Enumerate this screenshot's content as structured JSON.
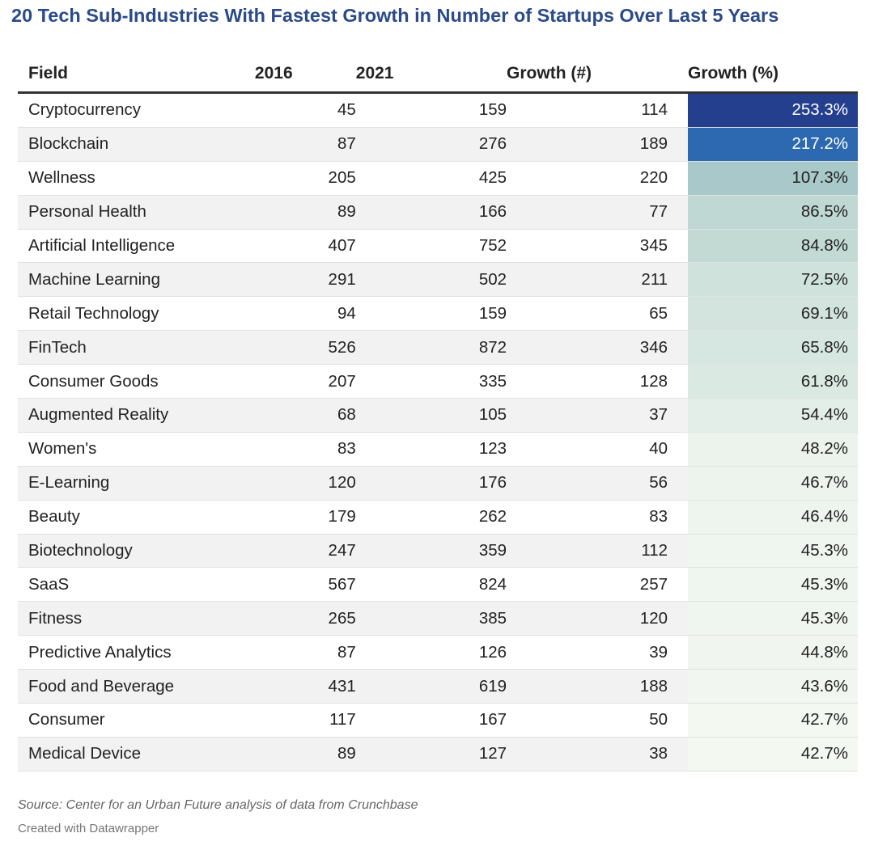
{
  "title": "20 Tech Sub-Industries With Fastest Growth in Number of Startups Over Last 5 Years",
  "source": "Source: Center for an Urban Future analysis of data from Crunchbase",
  "credit": "Created with Datawrapper",
  "chart_data": {
    "type": "table",
    "columns": [
      "Field",
      "2016",
      "2021",
      "Growth (#)",
      "Growth (%)"
    ],
    "rows": [
      {
        "field": "Cryptocurrency",
        "y2016": "45",
        "y2021": "159",
        "growth_num": "114",
        "growth_pct": "253.3%",
        "growth_value": 253.3
      },
      {
        "field": "Blockchain",
        "y2016": "87",
        "y2021": "276",
        "growth_num": "189",
        "growth_pct": "217.2%",
        "growth_value": 217.2
      },
      {
        "field": "Wellness",
        "y2016": "205",
        "y2021": "425",
        "growth_num": "220",
        "growth_pct": "107.3%",
        "growth_value": 107.3
      },
      {
        "field": "Personal Health",
        "y2016": "89",
        "y2021": "166",
        "growth_num": "77",
        "growth_pct": "86.5%",
        "growth_value": 86.5
      },
      {
        "field": "Artificial Intelligence",
        "y2016": "407",
        "y2021": "752",
        "growth_num": "345",
        "growth_pct": "84.8%",
        "growth_value": 84.8
      },
      {
        "field": "Machine Learning",
        "y2016": "291",
        "y2021": "502",
        "growth_num": "211",
        "growth_pct": "72.5%",
        "growth_value": 72.5
      },
      {
        "field": "Retail Technology",
        "y2016": "94",
        "y2021": "159",
        "growth_num": "65",
        "growth_pct": "69.1%",
        "growth_value": 69.1
      },
      {
        "field": "FinTech",
        "y2016": "526",
        "y2021": "872",
        "growth_num": "346",
        "growth_pct": "65.8%",
        "growth_value": 65.8
      },
      {
        "field": "Consumer Goods",
        "y2016": "207",
        "y2021": "335",
        "growth_num": "128",
        "growth_pct": "61.8%",
        "growth_value": 61.8
      },
      {
        "field": "Augmented Reality",
        "y2016": "68",
        "y2021": "105",
        "growth_num": "37",
        "growth_pct": "54.4%",
        "growth_value": 54.4
      },
      {
        "field": "Women's",
        "y2016": "83",
        "y2021": "123",
        "growth_num": "40",
        "growth_pct": "48.2%",
        "growth_value": 48.2
      },
      {
        "field": "E-Learning",
        "y2016": "120",
        "y2021": "176",
        "growth_num": "56",
        "growth_pct": "46.7%",
        "growth_value": 46.7
      },
      {
        "field": "Beauty",
        "y2016": "179",
        "y2021": "262",
        "growth_num": "83",
        "growth_pct": "46.4%",
        "growth_value": 46.4
      },
      {
        "field": "Biotechnology",
        "y2016": "247",
        "y2021": "359",
        "growth_num": "112",
        "growth_pct": "45.3%",
        "growth_value": 45.3
      },
      {
        "field": "SaaS",
        "y2016": "567",
        "y2021": "824",
        "growth_num": "257",
        "growth_pct": "45.3%",
        "growth_value": 45.3
      },
      {
        "field": "Fitness",
        "y2016": "265",
        "y2021": "385",
        "growth_num": "120",
        "growth_pct": "45.3%",
        "growth_value": 45.3
      },
      {
        "field": "Predictive Analytics",
        "y2016": "87",
        "y2021": "126",
        "growth_num": "39",
        "growth_pct": "44.8%",
        "growth_value": 44.8
      },
      {
        "field": "Food and Beverage",
        "y2016": "431",
        "y2021": "619",
        "growth_num": "188",
        "growth_pct": "43.6%",
        "growth_value": 43.6
      },
      {
        "field": "Consumer",
        "y2016": "117",
        "y2021": "167",
        "growth_num": "50",
        "growth_pct": "42.7%",
        "growth_value": 42.7
      },
      {
        "field": "Medical Device",
        "y2016": "89",
        "y2021": "127",
        "growth_num": "38",
        "growth_pct": "42.7%",
        "growth_value": 42.7
      }
    ],
    "heatmap_column": "Growth (%)",
    "heatmap_colors": {
      "max": "#253f8f",
      "high": "#2d6fb5",
      "mid": "#b4d1cc",
      "low": "#f3f8f1"
    }
  }
}
